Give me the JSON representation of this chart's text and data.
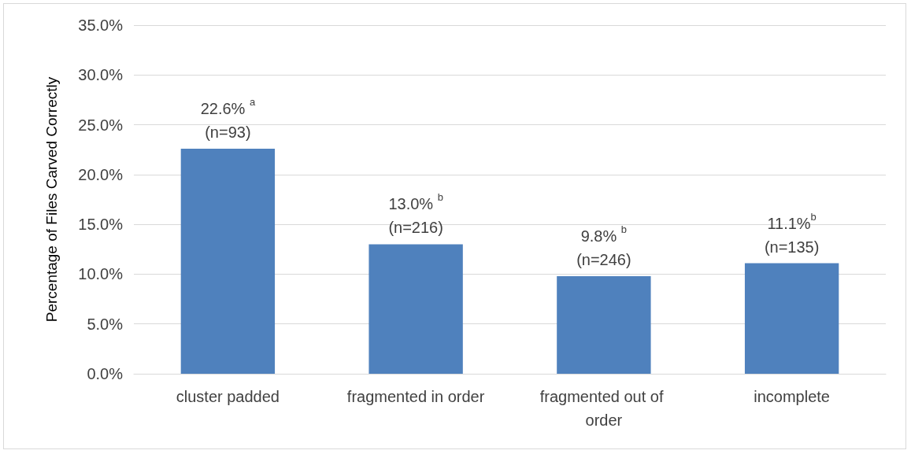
{
  "chart_data": {
    "type": "bar",
    "ylabel": "Percentage of Files Carved Correctly",
    "categories": [
      "cluster padded",
      "fragmented in order",
      "fragmented out of order",
      "incomplete"
    ],
    "values": [
      22.6,
      13.0,
      9.8,
      11.1
    ],
    "color": "#4f81bd",
    "value_labels": [
      "22.6% $^{a}$\n(n=93)",
      "13.0% $^{b}$\n(n=216)",
      "9.8% $^{b}$\n(n=246)",
      "11.1%$^{b}$\n(n=135)"
    ],
    "ylim": [
      0,
      35
    ],
    "yticks": [
      {
        "value": 0,
        "label": "0.0%"
      },
      {
        "value": 5,
        "label": "5.0%"
      },
      {
        "value": 10,
        "label": "10.0%"
      },
      {
        "value": 15,
        "label": "15.0%"
      },
      {
        "value": 20,
        "label": "20.0%"
      },
      {
        "value": 25,
        "label": "25.0%"
      },
      {
        "value": 30,
        "label": "30.0%"
      },
      {
        "value": 35,
        "label": "35.0%"
      }
    ],
    "grid": true
  }
}
